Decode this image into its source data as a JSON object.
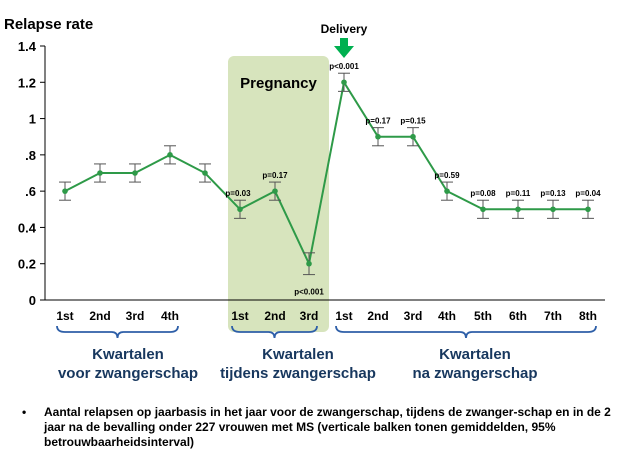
{
  "chart_data": {
    "type": "line",
    "ylabel": "Relapse rate",
    "ylim": [
      0,
      1.4
    ],
    "yticks": [
      0,
      0.2,
      0.4,
      0.6,
      0.8,
      1,
      1.2,
      1.4
    ],
    "ytick_labels": [
      "0",
      "0.2",
      "0.4",
      ".6",
      ".8",
      "1",
      "1.2",
      "1.4"
    ],
    "categories": [
      "1st",
      "2nd",
      "3rd",
      "4th",
      "",
      "1st",
      "2nd",
      "3rd",
      "1st",
      "2nd",
      "3rd",
      "4th",
      "5th",
      "6th",
      "7th",
      "8th"
    ],
    "series": [
      {
        "values": [
          0.6,
          0.7,
          0.7,
          0.8,
          0.7,
          0.5,
          0.6,
          0.2,
          1.2,
          0.9,
          0.9,
          0.6,
          0.5,
          0.5,
          0.5,
          0.5
        ],
        "error": [
          0.05,
          0.05,
          0.05,
          0.05,
          0.05,
          0.05,
          0.05,
          0.06,
          0.05,
          0.05,
          0.05,
          0.05,
          0.05,
          0.05,
          0.05,
          0.05
        ],
        "color": "#2e9a48"
      }
    ],
    "p_values": [
      "",
      "",
      "",
      "",
      "",
      "p=0.03",
      "p=0.17",
      "p<0.001",
      "p<0.001",
      "p=0.17",
      "p=0.15",
      "p=0.59",
      "p=0.08",
      "p=0.11",
      "p=0.13",
      "p=0.04"
    ],
    "highlight": {
      "label": "Pregnancy",
      "from_index": 5,
      "to_index": 7,
      "color": "#d7e4bd"
    },
    "event": {
      "label": "Delivery",
      "at_index": 8,
      "arrow_color": "#00b050"
    },
    "groups": [
      {
        "label_line1": "Kwartalen",
        "label_line2": "voor zwangerschap",
        "from_index": 0,
        "to_index": 3
      },
      {
        "label_line1": "Kwartalen",
        "label_line2": "tijdens zwangerschap",
        "from_index": 5,
        "to_index": 7
      },
      {
        "label_line1": "Kwartalen",
        "label_line2": "na zwangerschap",
        "from_index": 8,
        "to_index": 15
      }
    ],
    "brace_color": "#2e5fa8",
    "grid": false
  },
  "footnote": {
    "bullet": "•",
    "text": "Aantal relapsen op jaarbasis in het jaar voor de zwangerschap, tijdens de zwanger-schap en in de 2 jaar na de bevalling onder 227 vrouwen met MS (verticale balken tonen gemiddelden, 95% betrouwbaarheidsinterval)"
  }
}
